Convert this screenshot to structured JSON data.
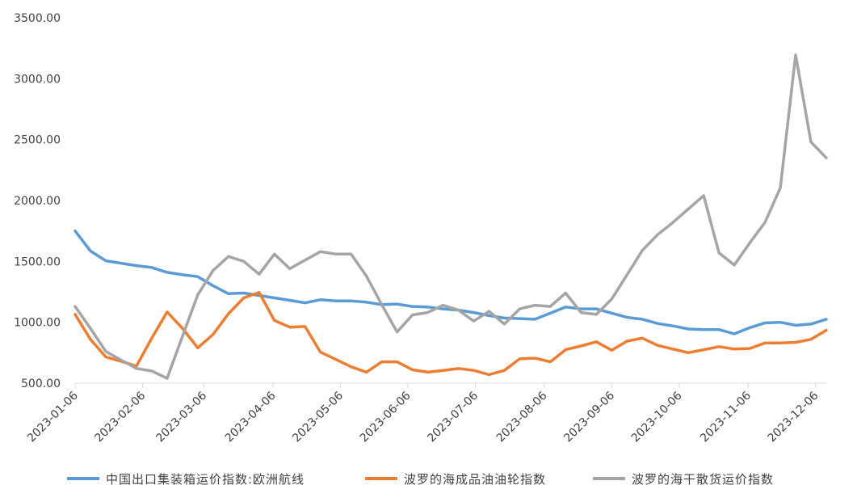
{
  "chart_data": {
    "type": "line",
    "title": "",
    "xlabel": "",
    "ylabel": "",
    "ylim": [
      500,
      3500
    ],
    "y_ticks": [
      "500.00",
      "1000.00",
      "1500.00",
      "2000.00",
      "2500.00",
      "3000.00",
      "3500.00"
    ],
    "grid": false,
    "legend_position": "bottom",
    "x_tick_labels": [
      "2023-01-06",
      "2023-02-06",
      "2023-03-06",
      "2023-04-06",
      "2023-05-06",
      "2023-06-06",
      "2023-07-06",
      "2023-08-06",
      "2023-09-06",
      "2023-10-06",
      "2023-11-06",
      "2023-12-06"
    ],
    "x_tick_indices": [
      0,
      4.4,
      8.4,
      12.9,
      17.3,
      21.7,
      26.1,
      30.6,
      35.0,
      39.4,
      43.9,
      48.3
    ],
    "series": [
      {
        "name": "中国出口集装箱运价指数:欧洲航线",
        "color": "#5b9bd5",
        "values": [
          1750,
          1585,
          1505,
          1485,
          1465,
          1450,
          1410,
          1390,
          1375,
          1300,
          1235,
          1240,
          1220,
          1200,
          1180,
          1160,
          1185,
          1175,
          1175,
          1165,
          1145,
          1150,
          1130,
          1125,
          1110,
          1100,
          1080,
          1055,
          1035,
          1030,
          1025,
          1075,
          1125,
          1110,
          1110,
          1075,
          1040,
          1025,
          990,
          970,
          945,
          940,
          940,
          905,
          955,
          995,
          1000,
          975,
          985,
          1025
        ]
      },
      {
        "name": "波罗的海成品油油轮指数",
        "color": "#ed7d31",
        "values": [
          1065,
          860,
          715,
          680,
          640,
          870,
          1085,
          950,
          790,
          900,
          1070,
          1200,
          1245,
          1015,
          960,
          965,
          755,
          695,
          635,
          590,
          675,
          675,
          610,
          590,
          605,
          620,
          605,
          570,
          605,
          700,
          705,
          675,
          775,
          805,
          840,
          770,
          845,
          870,
          810,
          780,
          750,
          775,
          800,
          780,
          785,
          830,
          830,
          835,
          860,
          935
        ]
      },
      {
        "name": "波罗的海干散货运价指数",
        "color": "#a5a5a5",
        "values": [
          1130,
          950,
          760,
          690,
          620,
          600,
          540,
          885,
          1225,
          1425,
          1540,
          1500,
          1395,
          1560,
          1440,
          1510,
          1580,
          1560,
          1560,
          1380,
          1145,
          920,
          1060,
          1080,
          1140,
          1100,
          1010,
          1090,
          985,
          1110,
          1140,
          1130,
          1240,
          1080,
          1065,
          1190,
          1390,
          1590,
          1720,
          1820,
          1930,
          2040,
          1570,
          1470,
          1650,
          1820,
          2105,
          3195,
          2480,
          2350
        ]
      }
    ]
  }
}
